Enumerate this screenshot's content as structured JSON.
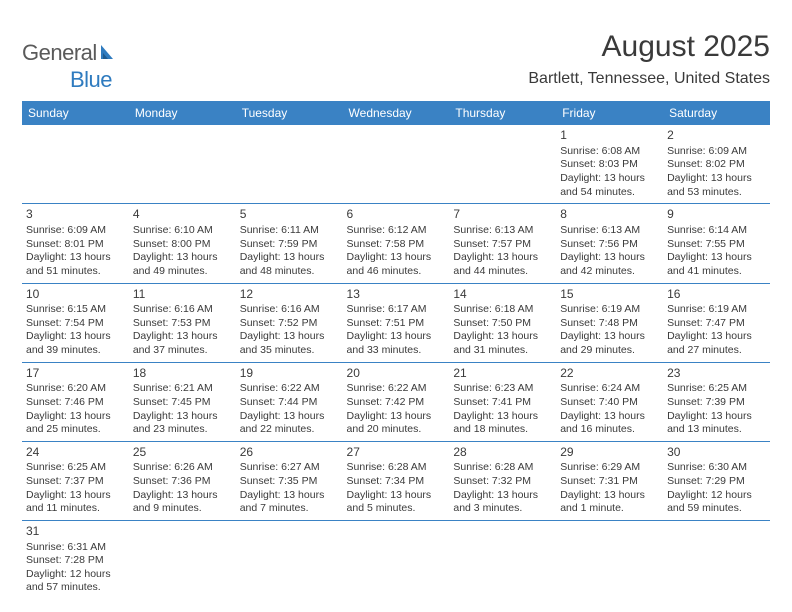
{
  "logo": {
    "text_general": "General",
    "text_blue": "Blue",
    "sail_color": "#2f7bbf",
    "gray_color": "#5a5a5a"
  },
  "title": "August 2025",
  "location": "Bartlett, Tennessee, United States",
  "styling": {
    "header_bg": "#3a82c4",
    "header_text_color": "#ffffff",
    "cell_border_color": "#3a82c4",
    "body_text_color": "#3a3a3a",
    "background_color": "#ffffff",
    "title_fontsize": 30,
    "location_fontsize": 16,
    "weekday_fontsize": 12,
    "daynum_fontsize": 12,
    "info_fontsize": 10.5,
    "font_family": "Arial"
  },
  "weekdays": [
    "Sunday",
    "Monday",
    "Tuesday",
    "Wednesday",
    "Thursday",
    "Friday",
    "Saturday"
  ],
  "grid": [
    [
      null,
      null,
      null,
      null,
      null,
      {
        "n": "1",
        "sr": "Sunrise: 6:08 AM",
        "ss": "Sunset: 8:03 PM",
        "dl1": "Daylight: 13 hours",
        "dl2": "and 54 minutes."
      },
      {
        "n": "2",
        "sr": "Sunrise: 6:09 AM",
        "ss": "Sunset: 8:02 PM",
        "dl1": "Daylight: 13 hours",
        "dl2": "and 53 minutes."
      }
    ],
    [
      {
        "n": "3",
        "sr": "Sunrise: 6:09 AM",
        "ss": "Sunset: 8:01 PM",
        "dl1": "Daylight: 13 hours",
        "dl2": "and 51 minutes."
      },
      {
        "n": "4",
        "sr": "Sunrise: 6:10 AM",
        "ss": "Sunset: 8:00 PM",
        "dl1": "Daylight: 13 hours",
        "dl2": "and 49 minutes."
      },
      {
        "n": "5",
        "sr": "Sunrise: 6:11 AM",
        "ss": "Sunset: 7:59 PM",
        "dl1": "Daylight: 13 hours",
        "dl2": "and 48 minutes."
      },
      {
        "n": "6",
        "sr": "Sunrise: 6:12 AM",
        "ss": "Sunset: 7:58 PM",
        "dl1": "Daylight: 13 hours",
        "dl2": "and 46 minutes."
      },
      {
        "n": "7",
        "sr": "Sunrise: 6:13 AM",
        "ss": "Sunset: 7:57 PM",
        "dl1": "Daylight: 13 hours",
        "dl2": "and 44 minutes."
      },
      {
        "n": "8",
        "sr": "Sunrise: 6:13 AM",
        "ss": "Sunset: 7:56 PM",
        "dl1": "Daylight: 13 hours",
        "dl2": "and 42 minutes."
      },
      {
        "n": "9",
        "sr": "Sunrise: 6:14 AM",
        "ss": "Sunset: 7:55 PM",
        "dl1": "Daylight: 13 hours",
        "dl2": "and 41 minutes."
      }
    ],
    [
      {
        "n": "10",
        "sr": "Sunrise: 6:15 AM",
        "ss": "Sunset: 7:54 PM",
        "dl1": "Daylight: 13 hours",
        "dl2": "and 39 minutes."
      },
      {
        "n": "11",
        "sr": "Sunrise: 6:16 AM",
        "ss": "Sunset: 7:53 PM",
        "dl1": "Daylight: 13 hours",
        "dl2": "and 37 minutes."
      },
      {
        "n": "12",
        "sr": "Sunrise: 6:16 AM",
        "ss": "Sunset: 7:52 PM",
        "dl1": "Daylight: 13 hours",
        "dl2": "and 35 minutes."
      },
      {
        "n": "13",
        "sr": "Sunrise: 6:17 AM",
        "ss": "Sunset: 7:51 PM",
        "dl1": "Daylight: 13 hours",
        "dl2": "and 33 minutes."
      },
      {
        "n": "14",
        "sr": "Sunrise: 6:18 AM",
        "ss": "Sunset: 7:50 PM",
        "dl1": "Daylight: 13 hours",
        "dl2": "and 31 minutes."
      },
      {
        "n": "15",
        "sr": "Sunrise: 6:19 AM",
        "ss": "Sunset: 7:48 PM",
        "dl1": "Daylight: 13 hours",
        "dl2": "and 29 minutes."
      },
      {
        "n": "16",
        "sr": "Sunrise: 6:19 AM",
        "ss": "Sunset: 7:47 PM",
        "dl1": "Daylight: 13 hours",
        "dl2": "and 27 minutes."
      }
    ],
    [
      {
        "n": "17",
        "sr": "Sunrise: 6:20 AM",
        "ss": "Sunset: 7:46 PM",
        "dl1": "Daylight: 13 hours",
        "dl2": "and 25 minutes."
      },
      {
        "n": "18",
        "sr": "Sunrise: 6:21 AM",
        "ss": "Sunset: 7:45 PM",
        "dl1": "Daylight: 13 hours",
        "dl2": "and 23 minutes."
      },
      {
        "n": "19",
        "sr": "Sunrise: 6:22 AM",
        "ss": "Sunset: 7:44 PM",
        "dl1": "Daylight: 13 hours",
        "dl2": "and 22 minutes."
      },
      {
        "n": "20",
        "sr": "Sunrise: 6:22 AM",
        "ss": "Sunset: 7:42 PM",
        "dl1": "Daylight: 13 hours",
        "dl2": "and 20 minutes."
      },
      {
        "n": "21",
        "sr": "Sunrise: 6:23 AM",
        "ss": "Sunset: 7:41 PM",
        "dl1": "Daylight: 13 hours",
        "dl2": "and 18 minutes."
      },
      {
        "n": "22",
        "sr": "Sunrise: 6:24 AM",
        "ss": "Sunset: 7:40 PM",
        "dl1": "Daylight: 13 hours",
        "dl2": "and 16 minutes."
      },
      {
        "n": "23",
        "sr": "Sunrise: 6:25 AM",
        "ss": "Sunset: 7:39 PM",
        "dl1": "Daylight: 13 hours",
        "dl2": "and 13 minutes."
      }
    ],
    [
      {
        "n": "24",
        "sr": "Sunrise: 6:25 AM",
        "ss": "Sunset: 7:37 PM",
        "dl1": "Daylight: 13 hours",
        "dl2": "and 11 minutes."
      },
      {
        "n": "25",
        "sr": "Sunrise: 6:26 AM",
        "ss": "Sunset: 7:36 PM",
        "dl1": "Daylight: 13 hours",
        "dl2": "and 9 minutes."
      },
      {
        "n": "26",
        "sr": "Sunrise: 6:27 AM",
        "ss": "Sunset: 7:35 PM",
        "dl1": "Daylight: 13 hours",
        "dl2": "and 7 minutes."
      },
      {
        "n": "27",
        "sr": "Sunrise: 6:28 AM",
        "ss": "Sunset: 7:34 PM",
        "dl1": "Daylight: 13 hours",
        "dl2": "and 5 minutes."
      },
      {
        "n": "28",
        "sr": "Sunrise: 6:28 AM",
        "ss": "Sunset: 7:32 PM",
        "dl1": "Daylight: 13 hours",
        "dl2": "and 3 minutes."
      },
      {
        "n": "29",
        "sr": "Sunrise: 6:29 AM",
        "ss": "Sunset: 7:31 PM",
        "dl1": "Daylight: 13 hours",
        "dl2": "and 1 minute."
      },
      {
        "n": "30",
        "sr": "Sunrise: 6:30 AM",
        "ss": "Sunset: 7:29 PM",
        "dl1": "Daylight: 12 hours",
        "dl2": "and 59 minutes."
      }
    ],
    [
      {
        "n": "31",
        "sr": "Sunrise: 6:31 AM",
        "ss": "Sunset: 7:28 PM",
        "dl1": "Daylight: 12 hours",
        "dl2": "and 57 minutes."
      },
      null,
      null,
      null,
      null,
      null,
      null
    ]
  ]
}
